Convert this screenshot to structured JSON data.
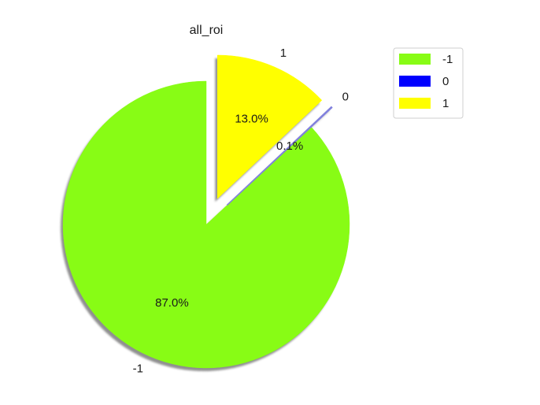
{
  "chart_data": {
    "type": "pie",
    "title": "all_roi",
    "slices": [
      {
        "label": "-1",
        "percent": 87.0,
        "pct_label": "87.0%",
        "color": "#88FC15",
        "exploded": false
      },
      {
        "label": "0",
        "percent": 0.1,
        "pct_label": "0.1%",
        "color": "#0000FF",
        "exploded": true
      },
      {
        "label": "1",
        "percent": 13.0,
        "pct_label": "13.0%",
        "color": "#FFFF00",
        "exploded": true
      }
    ],
    "legend": {
      "placement": "upper right, outside plot",
      "entries": [
        "-1",
        "0",
        "1"
      ]
    },
    "shadow": true,
    "start_direction": "counterclockwise from 90 degrees"
  }
}
